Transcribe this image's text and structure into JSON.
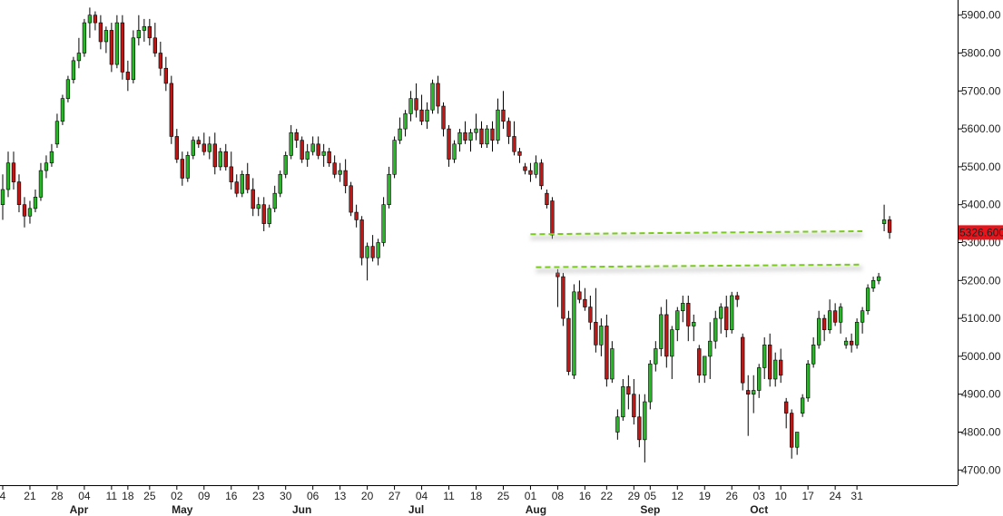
{
  "chart_data": {
    "type": "candlestick",
    "ylim": [
      4660,
      5940
    ],
    "yticks": [
      "5900.00",
      "5800.00",
      "5700.00",
      "5600.00",
      "5500.00",
      "5400.00",
      "5300.00",
      "5200.00",
      "5100.00",
      "5000.00",
      "4900.00",
      "4800.00",
      "4700.00"
    ],
    "ytick_values": [
      5900,
      5800,
      5700,
      5600,
      5500,
      5400,
      5300,
      5200,
      5100,
      5000,
      4900,
      4800,
      4700
    ],
    "last_price_label": "5326.600",
    "last_price": 5326.6,
    "colors": {
      "up": "#22bb22",
      "down": "#cc1111",
      "last_price_bg": "#e8141c",
      "trendline": "#7acc1a"
    },
    "date_ticks": [
      {
        "label": "4",
        "index": 0
      },
      {
        "label": "21",
        "index": 5
      },
      {
        "label": "28",
        "index": 10
      },
      {
        "label": "04",
        "index": 15
      },
      {
        "label": "11",
        "index": 20
      },
      {
        "label": "18",
        "index": 23
      },
      {
        "label": "25",
        "index": 27
      },
      {
        "label": "02",
        "index": 32
      },
      {
        "label": "09",
        "index": 37
      },
      {
        "label": "16",
        "index": 42
      },
      {
        "label": "23",
        "index": 47
      },
      {
        "label": "30",
        "index": 52
      },
      {
        "label": "06",
        "index": 57
      },
      {
        "label": "13",
        "index": 62
      },
      {
        "label": "20",
        "index": 67
      },
      {
        "label": "27",
        "index": 72
      },
      {
        "label": "04",
        "index": 77
      },
      {
        "label": "11",
        "index": 82
      },
      {
        "label": "18",
        "index": 87
      },
      {
        "label": "25",
        "index": 92
      },
      {
        "label": "01",
        "index": 97
      },
      {
        "label": "08",
        "index": 102
      },
      {
        "label": "16",
        "index": 107
      },
      {
        "label": "22",
        "index": 111
      },
      {
        "label": "29",
        "index": 116
      },
      {
        "label": "05",
        "index": 119
      },
      {
        "label": "12",
        "index": 124
      },
      {
        "label": "19",
        "index": 129
      },
      {
        "label": "26",
        "index": 134
      },
      {
        "label": "03",
        "index": 139
      },
      {
        "label": "10",
        "index": 143
      },
      {
        "label": "17",
        "index": 148
      },
      {
        "label": "24",
        "index": 153
      },
      {
        "label": "31",
        "index": 157
      }
    ],
    "months": [
      {
        "label": "Apr",
        "index": 14
      },
      {
        "label": "May",
        "index": 33
      },
      {
        "label": "Jun",
        "index": 55
      },
      {
        "label": "Jul",
        "index": 76
      },
      {
        "label": "Aug",
        "index": 98
      },
      {
        "label": "Sep",
        "index": 119
      },
      {
        "label": "Oct",
        "index": 139
      }
    ],
    "x_range": [
      -0.5,
      175.5
    ],
    "candles": [
      [
        5400,
        5480,
        5360,
        5440
      ],
      [
        5440,
        5540,
        5420,
        5510
      ],
      [
        5510,
        5540,
        5440,
        5460
      ],
      [
        5460,
        5480,
        5380,
        5400
      ],
      [
        5400,
        5420,
        5340,
        5370
      ],
      [
        5370,
        5410,
        5350,
        5390
      ],
      [
        5390,
        5440,
        5380,
        5420
      ],
      [
        5420,
        5510,
        5410,
        5490
      ],
      [
        5490,
        5530,
        5470,
        5510
      ],
      [
        5510,
        5560,
        5500,
        5540
      ],
      [
        5560,
        5640,
        5550,
        5620
      ],
      [
        5620,
        5690,
        5610,
        5680
      ],
      [
        5680,
        5740,
        5670,
        5730
      ],
      [
        5730,
        5790,
        5720,
        5780
      ],
      [
        5780,
        5840,
        5760,
        5800
      ],
      [
        5800,
        5890,
        5790,
        5880
      ],
      [
        5880,
        5920,
        5840,
        5900
      ],
      [
        5900,
        5910,
        5860,
        5880
      ],
      [
        5880,
        5900,
        5810,
        5830
      ],
      [
        5830,
        5870,
        5800,
        5860
      ],
      [
        5860,
        5880,
        5750,
        5770
      ],
      [
        5770,
        5900,
        5760,
        5880
      ],
      [
        5880,
        5900,
        5730,
        5750
      ],
      [
        5750,
        5780,
        5700,
        5730
      ],
      [
        5730,
        5860,
        5720,
        5840
      ],
      [
        5840,
        5900,
        5820,
        5860
      ],
      [
        5860,
        5890,
        5830,
        5870
      ],
      [
        5870,
        5890,
        5820,
        5840
      ],
      [
        5840,
        5880,
        5790,
        5800
      ],
      [
        5800,
        5830,
        5740,
        5760
      ],
      [
        5760,
        5790,
        5700,
        5720
      ],
      [
        5720,
        5740,
        5560,
        5580
      ],
      [
        5580,
        5600,
        5510,
        5520
      ],
      [
        5520,
        5540,
        5450,
        5470
      ],
      [
        5470,
        5540,
        5460,
        5530
      ],
      [
        5530,
        5580,
        5520,
        5570
      ],
      [
        5570,
        5580,
        5550,
        5560
      ],
      [
        5560,
        5590,
        5530,
        5540
      ],
      [
        5540,
        5580,
        5520,
        5560
      ],
      [
        5560,
        5590,
        5480,
        5500
      ],
      [
        5500,
        5550,
        5490,
        5540
      ],
      [
        5540,
        5560,
        5490,
        5500
      ],
      [
        5500,
        5540,
        5440,
        5460
      ],
      [
        5460,
        5480,
        5420,
        5430
      ],
      [
        5430,
        5490,
        5420,
        5480
      ],
      [
        5480,
        5510,
        5430,
        5440
      ],
      [
        5440,
        5470,
        5370,
        5390
      ],
      [
        5390,
        5420,
        5370,
        5400
      ],
      [
        5400,
        5420,
        5330,
        5350
      ],
      [
        5350,
        5400,
        5340,
        5390
      ],
      [
        5390,
        5450,
        5380,
        5430
      ],
      [
        5430,
        5490,
        5420,
        5480
      ],
      [
        5480,
        5540,
        5470,
        5530
      ],
      [
        5530,
        5610,
        5520,
        5590
      ],
      [
        5590,
        5600,
        5550,
        5570
      ],
      [
        5570,
        5580,
        5510,
        5520
      ],
      [
        5520,
        5560,
        5500,
        5540
      ],
      [
        5540,
        5580,
        5530,
        5560
      ],
      [
        5560,
        5580,
        5520,
        5530
      ],
      [
        5530,
        5560,
        5500,
        5540
      ],
      [
        5540,
        5550,
        5500,
        5510
      ],
      [
        5510,
        5530,
        5470,
        5480
      ],
      [
        5480,
        5510,
        5460,
        5490
      ],
      [
        5490,
        5520,
        5430,
        5450
      ],
      [
        5450,
        5460,
        5370,
        5380
      ],
      [
        5380,
        5400,
        5340,
        5360
      ],
      [
        5360,
        5370,
        5240,
        5260
      ],
      [
        5260,
        5300,
        5200,
        5290
      ],
      [
        5290,
        5320,
        5250,
        5260
      ],
      [
        5260,
        5310,
        5240,
        5300
      ],
      [
        5300,
        5420,
        5290,
        5400
      ],
      [
        5400,
        5500,
        5390,
        5480
      ],
      [
        5480,
        5580,
        5470,
        5570
      ],
      [
        5570,
        5630,
        5560,
        5600
      ],
      [
        5600,
        5650,
        5580,
        5640
      ],
      [
        5640,
        5700,
        5620,
        5680
      ],
      [
        5680,
        5720,
        5630,
        5650
      ],
      [
        5650,
        5690,
        5610,
        5620
      ],
      [
        5620,
        5670,
        5600,
        5650
      ],
      [
        5650,
        5730,
        5640,
        5720
      ],
      [
        5720,
        5740,
        5640,
        5660
      ],
      [
        5660,
        5670,
        5580,
        5600
      ],
      [
        5600,
        5610,
        5500,
        5520
      ],
      [
        5520,
        5570,
        5510,
        5560
      ],
      [
        5560,
        5600,
        5540,
        5590
      ],
      [
        5590,
        5620,
        5560,
        5570
      ],
      [
        5570,
        5600,
        5540,
        5590
      ],
      [
        5590,
        5640,
        5570,
        5600
      ],
      [
        5600,
        5620,
        5550,
        5560
      ],
      [
        5560,
        5610,
        5550,
        5600
      ],
      [
        5600,
        5620,
        5540,
        5570
      ],
      [
        5570,
        5680,
        5560,
        5650
      ],
      [
        5650,
        5700,
        5600,
        5620
      ],
      [
        5620,
        5630,
        5560,
        5580
      ],
      [
        5580,
        5620,
        5530,
        5540
      ],
      [
        5540,
        5550,
        5510,
        5530
      ],
      [
        5500,
        5510,
        5480,
        5490
      ],
      [
        5490,
        5510,
        5460,
        5480
      ],
      [
        5480,
        5530,
        5470,
        5510
      ],
      [
        5510,
        5520,
        5440,
        5450
      ],
      [
        5430,
        5440,
        5390,
        5400
      ],
      [
        5410,
        5420,
        5310,
        5320
      ],
      [
        5220,
        5230,
        5130,
        5210
      ],
      [
        5210,
        5220,
        5080,
        5100
      ],
      [
        5100,
        5120,
        4950,
        4960
      ],
      [
        4950,
        5190,
        4940,
        5170
      ],
      [
        5170,
        5200,
        5140,
        5150
      ],
      [
        5150,
        5180,
        5120,
        5130
      ],
      [
        5130,
        5160,
        5070,
        5090
      ],
      [
        5090,
        5180,
        5010,
        5030
      ],
      [
        5030,
        5100,
        5000,
        5080
      ],
      [
        5080,
        5110,
        4920,
        4940
      ],
      [
        4940,
        5040,
        4930,
        5020
      ],
      [
        4800,
        4860,
        4780,
        4840
      ],
      [
        4840,
        4940,
        4830,
        4920
      ],
      [
        4920,
        4950,
        4860,
        4900
      ],
      [
        4900,
        4940,
        4820,
        4840
      ],
      [
        4840,
        4900,
        4760,
        4780
      ],
      [
        4780,
        4900,
        4720,
        4880
      ],
      [
        4880,
        4990,
        4860,
        4980
      ],
      [
        4980,
        5040,
        4960,
        5020
      ],
      [
        5020,
        5130,
        5000,
        5110
      ],
      [
        5110,
        5150,
        4970,
        5000
      ],
      [
        5000,
        5080,
        4940,
        5070
      ],
      [
        5070,
        5130,
        5040,
        5120
      ],
      [
        5120,
        5160,
        5090,
        5140
      ],
      [
        5140,
        5160,
        5040,
        5080
      ],
      [
        5080,
        5110,
        5040,
        5090
      ],
      [
        5020,
        5030,
        4930,
        4950
      ],
      [
        4950,
        5000,
        4930,
        5000
      ],
      [
        5000,
        5090,
        4940,
        5040
      ],
      [
        5040,
        5120,
        5020,
        5100
      ],
      [
        5100,
        5140,
        5060,
        5130
      ],
      [
        5130,
        5160,
        5050,
        5070
      ],
      [
        5070,
        5170,
        5060,
        5160
      ],
      [
        5160,
        5170,
        5130,
        5150
      ],
      [
        5050,
        5060,
        4910,
        4930
      ],
      [
        4910,
        4950,
        4790,
        4900
      ],
      [
        4900,
        4950,
        4850,
        4910
      ],
      [
        4910,
        4980,
        4890,
        4970
      ],
      [
        4970,
        5050,
        4940,
        5030
      ],
      [
        5030,
        5060,
        4920,
        4940
      ],
      [
        4940,
        5010,
        4920,
        4990
      ],
      [
        4990,
        5020,
        4930,
        4950
      ],
      [
        4880,
        4890,
        4810,
        4850
      ],
      [
        4850,
        4860,
        4730,
        4760
      ],
      [
        4760,
        4800,
        4740,
        4800
      ],
      [
        4850,
        4900,
        4840,
        4890
      ],
      [
        4890,
        4990,
        4880,
        4980
      ],
      [
        4980,
        5050,
        4970,
        5030
      ],
      [
        5030,
        5120,
        5020,
        5100
      ],
      [
        5100,
        5110,
        5040,
        5070
      ],
      [
        5070,
        5150,
        5060,
        5120
      ],
      [
        5120,
        5140,
        5080,
        5090
      ],
      [
        5090,
        5140,
        5060,
        5130
      ],
      [
        5030,
        5050,
        5020,
        5040
      ],
      [
        5040,
        5060,
        5010,
        5030
      ],
      [
        5030,
        5100,
        5020,
        5090
      ],
      [
        5090,
        5130,
        5060,
        5120
      ],
      [
        5120,
        5190,
        5110,
        5180
      ],
      [
        5180,
        5210,
        5170,
        5200
      ],
      [
        5200,
        5220,
        5190,
        5210
      ],
      [
        5350,
        5400,
        5330,
        5360
      ],
      [
        5360,
        5370,
        5310,
        5326.6
      ]
    ]
  },
  "annotations": [
    {
      "name": "trendline-upper",
      "from": [
        97,
        5322
      ],
      "to": [
        158,
        5330
      ]
    },
    {
      "name": "trendline-lower",
      "from": [
        98,
        5235
      ],
      "to": [
        158,
        5242
      ]
    }
  ]
}
